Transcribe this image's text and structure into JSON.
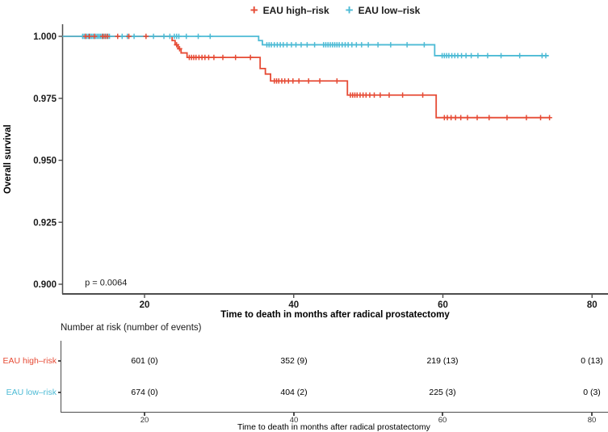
{
  "figure": {
    "legend": {
      "items": [
        {
          "label": "EAU high–risk",
          "color": "#E64B35",
          "symbol": "plus"
        },
        {
          "label": "EAU low–risk",
          "color": "#4DBBD5",
          "symbol": "plus"
        }
      ]
    },
    "p_value": "p = 0.0064",
    "y_axis": {
      "title": "Overall survival",
      "tick_labels": [
        "1.000",
        "0.975",
        "0.950",
        "0.925",
        "0.900"
      ],
      "tick_values": [
        1.0,
        0.975,
        0.95,
        0.925,
        0.9
      ]
    },
    "x_axis": {
      "title": "Time to death in months after radical prostatectomy",
      "tick_values": [
        20,
        40,
        60,
        80
      ]
    }
  },
  "chart_data": {
    "type": "line",
    "subtype": "kaplan_meier_step_curves",
    "title": "",
    "xlabel": "Time to death in months after radical prostatectomy",
    "ylabel": "Overall survival",
    "xlim": [
      9,
      82
    ],
    "ylim": [
      0.896,
      1.004
    ],
    "x_ticks": [
      20,
      40,
      60,
      80
    ],
    "y_ticks": [
      1.0,
      0.975,
      0.95,
      0.925,
      0.9
    ],
    "grid": false,
    "legend_position": "top",
    "annotations": [
      {
        "text": "p = 0.0064",
        "x": 12,
        "y": 0.9008
      }
    ],
    "series": [
      {
        "name": "EAU high–risk",
        "color": "#E64B35",
        "start_x": 9,
        "start_y": 1.0,
        "end_x": 74.4,
        "steps": [
          [
            23.7,
            0.9983
          ],
          [
            24.1,
            0.9966
          ],
          [
            24.5,
            0.995
          ],
          [
            24.9,
            0.9933
          ],
          [
            25.7,
            0.9915
          ],
          [
            35.5,
            0.987
          ],
          [
            36.2,
            0.9848
          ],
          [
            36.9,
            0.982
          ],
          [
            47.2,
            0.9763
          ],
          [
            59.1,
            0.9672
          ]
        ],
        "censor_times": [
          12.1,
          12.6,
          13.3,
          14.4,
          14.7,
          15.0,
          16.4,
          17.9,
          20.2,
          24.3,
          24.7,
          26.0,
          26.3,
          26.6,
          26.9,
          27.3,
          27.7,
          28.1,
          28.6,
          29.3,
          30.5,
          32.2,
          34.2,
          37.4,
          37.7,
          38.0,
          38.4,
          38.8,
          39.3,
          39.9,
          40.7,
          42.0,
          43.5,
          45.8,
          47.6,
          47.9,
          48.2,
          48.5,
          48.9,
          49.3,
          49.7,
          50.2,
          50.8,
          51.6,
          52.8,
          54.6,
          57.3,
          60.2,
          60.6,
          61.1,
          61.7,
          62.4,
          63.3,
          64.6,
          66.2,
          68.6,
          71.2,
          73.1,
          74.3
        ]
      },
      {
        "name": "EAU low–risk",
        "color": "#4DBBD5",
        "start_x": 9,
        "start_y": 1.0,
        "end_x": 74.2,
        "steps": [
          [
            35.3,
            0.9983
          ],
          [
            35.8,
            0.9966
          ],
          [
            58.9,
            0.9922
          ]
        ],
        "censor_times": [
          11.7,
          11.9,
          12.1,
          12.3,
          12.5,
          12.7,
          12.9,
          13.1,
          13.3,
          13.5,
          13.7,
          13.9,
          14.1,
          14.3,
          14.5,
          14.8,
          15.1,
          15.3,
          17.0,
          17.7,
          18.6,
          21.2,
          22.6,
          23.4,
          24.0,
          24.3,
          24.6,
          25.6,
          27.2,
          28.8,
          36.4,
          36.7,
          37.0,
          37.4,
          37.8,
          38.2,
          38.6,
          39.1,
          39.7,
          40.3,
          41.0,
          41.8,
          42.8,
          44.0,
          44.3,
          44.6,
          44.9,
          45.2,
          45.5,
          45.8,
          46.1,
          46.5,
          46.9,
          47.3,
          47.8,
          48.4,
          49.1,
          50.0,
          51.3,
          53.0,
          55.2,
          57.5,
          59.9,
          60.2,
          60.5,
          60.8,
          61.2,
          61.6,
          62.0,
          62.5,
          63.1,
          63.8,
          64.7,
          66.0,
          67.8,
          70.3,
          73.3,
          73.8
        ]
      }
    ]
  },
  "risk_table": {
    "title": "Number at risk (number of events)",
    "xlabel": "Time to death in months after radical prostatectomy",
    "x_tick_labels": [
      "20",
      "40",
      "60",
      "80"
    ],
    "rows": [
      {
        "label": "EAU high–risk",
        "color": "#E64B35",
        "values": [
          "601 (0)",
          "352 (9)",
          "219 (13)",
          "0 (13)"
        ]
      },
      {
        "label": "EAU low–risk",
        "color": "#4DBBD5",
        "values": [
          "674 (0)",
          "404 (2)",
          "225 (3)",
          "0 (3)"
        ]
      }
    ]
  }
}
